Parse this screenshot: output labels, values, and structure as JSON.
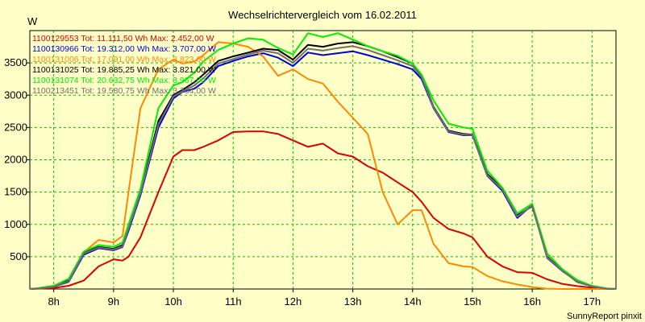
{
  "chart_data": {
    "type": "line",
    "title": "Wechselrichtervergleich vom 16.02.2011",
    "ylabel": "W",
    "xlabel": "",
    "footer": "SunnyReport pinxit",
    "xlim": [
      7.6,
      17.4
    ],
    "ylim": [
      0,
      4000
    ],
    "x_ticks": [
      8,
      9,
      10,
      11,
      12,
      13,
      14,
      15,
      16,
      17
    ],
    "x_tick_labels": [
      "8h",
      "9h",
      "10h",
      "11h",
      "12h",
      "13h",
      "14h",
      "15h",
      "16h",
      "17h"
    ],
    "y_ticks": [
      500,
      1000,
      1500,
      2000,
      2500,
      3000,
      3500
    ],
    "y_tick_labels": [
      "500",
      "1000",
      "1500",
      "2000",
      "2500",
      "3000",
      "3500"
    ],
    "grid": true,
    "legend_position": "top-left",
    "x": [
      7.6,
      7.75,
      8.0,
      8.25,
      8.5,
      8.75,
      9.0,
      9.15,
      9.25,
      9.45,
      9.75,
      10.0,
      10.15,
      10.35,
      10.5,
      10.75,
      11.0,
      11.25,
      11.5,
      11.75,
      12.0,
      12.25,
      12.5,
      12.75,
      13.0,
      13.25,
      13.5,
      13.75,
      14.0,
      14.15,
      14.35,
      14.6,
      14.85,
      15.0,
      15.25,
      15.5,
      15.75,
      16.0,
      16.25,
      16.5,
      16.75,
      17.0,
      17.25,
      17.4
    ],
    "series": [
      {
        "name": "1100129553",
        "legend": "1100129553 Tot: 11.111,50 Wh Max: 2.452,00 W",
        "color": "#dd0000",
        "values": [
          0,
          5,
          15,
          50,
          130,
          350,
          460,
          440,
          500,
          800,
          1500,
          2050,
          2150,
          2150,
          2200,
          2300,
          2430,
          2440,
          2440,
          2400,
          2300,
          2200,
          2250,
          2100,
          2050,
          1900,
          1800,
          1650,
          1500,
          1350,
          1100,
          930,
          860,
          800,
          500,
          350,
          260,
          250,
          150,
          80,
          45,
          20,
          0,
          0
        ]
      },
      {
        "name": "1100130966",
        "legend": "1100130966 Tot: 19.312,00 Wh Max: 3.707,00 W",
        "color": "#0000dd",
        "values": [
          0,
          10,
          35,
          110,
          530,
          630,
          600,
          650,
          900,
          1450,
          2500,
          2950,
          3050,
          3100,
          3200,
          3450,
          3530,
          3600,
          3650,
          3580,
          3450,
          3660,
          3620,
          3650,
          3680,
          3620,
          3550,
          3480,
          3400,
          3250,
          2800,
          2430,
          2380,
          2380,
          1750,
          1520,
          1100,
          1300,
          480,
          280,
          120,
          40,
          5,
          0
        ]
      },
      {
        "name": "1100131006",
        "legend": "1100131006 Tot: 17.091,00 Wh Max: 3.823,00 W",
        "color": "#ff8800",
        "values": [
          0,
          10,
          40,
          140,
          570,
          760,
          720,
          820,
          1500,
          2800,
          3400,
          3550,
          3490,
          3520,
          3620,
          3820,
          3800,
          3750,
          3600,
          3300,
          3400,
          3250,
          3180,
          2900,
          2650,
          2400,
          1500,
          1000,
          1220,
          1220,
          700,
          400,
          350,
          340,
          200,
          120,
          70,
          30,
          5,
          0,
          0,
          0,
          0,
          0
        ]
      },
      {
        "name": "1100131025",
        "legend": "1100131025 Tot: 19.885,25 Wh Max: 3.821,00 W",
        "color": "#000000",
        "values": [
          0,
          10,
          40,
          130,
          560,
          650,
          620,
          680,
          960,
          1500,
          2600,
          3000,
          3080,
          3200,
          3320,
          3530,
          3600,
          3660,
          3720,
          3700,
          3550,
          3780,
          3750,
          3800,
          3820,
          3760,
          3680,
          3590,
          3490,
          3300,
          2820,
          2450,
          2400,
          2390,
          1780,
          1560,
          1140,
          1280,
          500,
          290,
          110,
          40,
          5,
          0
        ]
      },
      {
        "name": "1100131074",
        "legend": "1100131074 Tot: 20.632,75 Wh Max: 3.967,00 W",
        "color": "#00ee00",
        "values": [
          0,
          15,
          50,
          160,
          580,
          680,
          650,
          720,
          1000,
          1550,
          2800,
          3150,
          3200,
          3350,
          3520,
          3700,
          3800,
          3880,
          3860,
          3730,
          3630,
          3960,
          3900,
          3960,
          3860,
          3760,
          3680,
          3610,
          3490,
          3320,
          2920,
          2560,
          2500,
          2480,
          1830,
          1570,
          1170,
          1320,
          550,
          310,
          140,
          50,
          10,
          0
        ]
      },
      {
        "name": "1100213451",
        "legend": "1100213451 Tot: 19.580,75 Wh Max: 3.764,00 W",
        "color": "#707070",
        "values": [
          0,
          10,
          35,
          120,
          550,
          640,
          610,
          660,
          930,
          1480,
          2550,
          2980,
          3060,
          3150,
          3260,
          3490,
          3560,
          3630,
          3690,
          3650,
          3500,
          3720,
          3690,
          3730,
          3760,
          3700,
          3620,
          3540,
          3450,
          3280,
          2810,
          2440,
          2390,
          2385,
          1760,
          1540,
          1120,
          1290,
          490,
          285,
          115,
          40,
          5,
          0
        ]
      }
    ]
  }
}
